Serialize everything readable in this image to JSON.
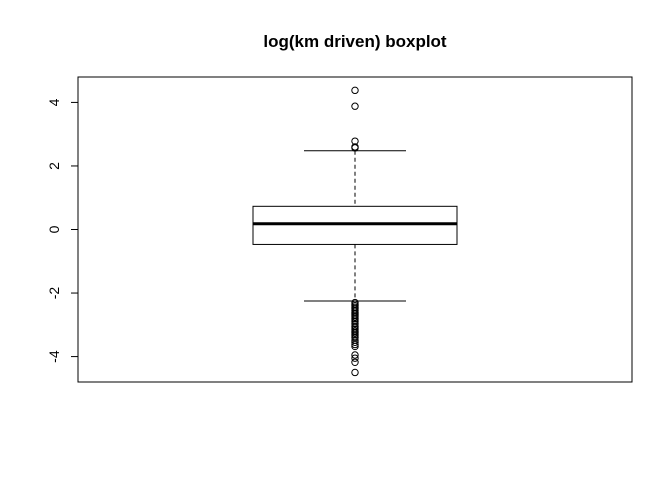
{
  "chart_data": {
    "type": "boxplot",
    "title": "log(km driven) boxplot",
    "xlabel": "",
    "ylabel": "",
    "ylim": [
      -4.8,
      4.8
    ],
    "y_ticks": [
      -4,
      -2,
      0,
      2,
      4
    ],
    "y_tick_labels": [
      "-4",
      "-2",
      "0",
      "2",
      "4"
    ],
    "grid": false,
    "box": {
      "lower_whisker": -2.25,
      "q1": -0.47,
      "median": 0.18,
      "q3": 0.73,
      "upper_whisker": 2.48
    },
    "outliers": [
      4.38,
      3.88,
      2.78,
      2.6,
      2.57,
      -2.3,
      -2.35,
      -2.4,
      -2.45,
      -2.5,
      -2.55,
      -2.6,
      -2.65,
      -2.7,
      -2.75,
      -2.8,
      -2.85,
      -2.9,
      -2.97,
      -3.05,
      -3.1,
      -3.15,
      -3.2,
      -3.25,
      -3.3,
      -3.35,
      -3.4,
      -3.48,
      -3.55,
      -3.62,
      -3.68,
      -3.95,
      -4.05,
      -4.18,
      -4.5
    ]
  }
}
